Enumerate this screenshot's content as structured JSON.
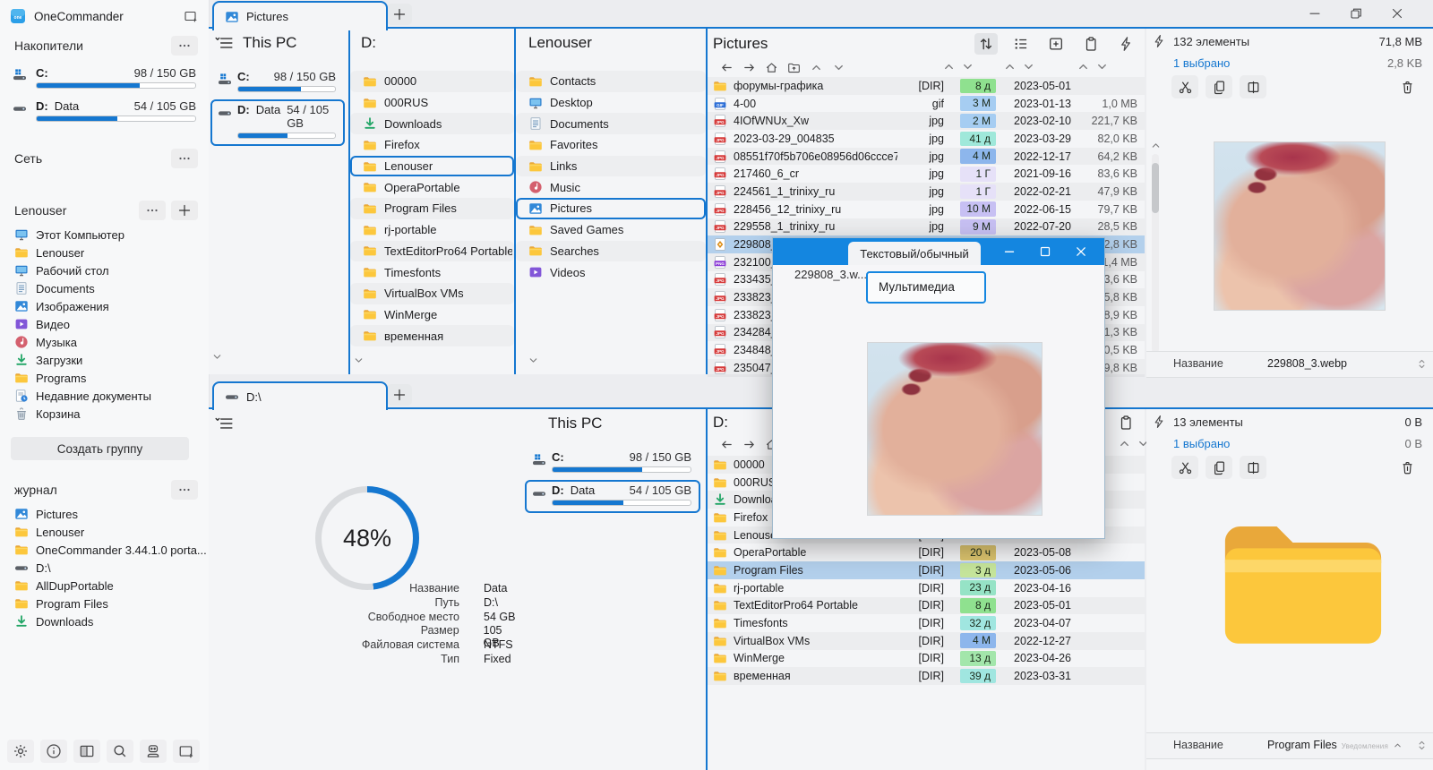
{
  "sidebar": {
    "app_title": "OneCommander",
    "drives_section": "Накопители",
    "network_section": "Сеть",
    "group_section": "Lenouser",
    "journal_section": "журнал",
    "create_group": "Создать группу",
    "group_items": [
      {
        "icon": "monitor",
        "label": "Этот Компьютер"
      },
      {
        "icon": "folder",
        "label": "Lenouser"
      },
      {
        "icon": "monitor",
        "label": "Рабочий стол"
      },
      {
        "icon": "doc",
        "label": "Documents"
      },
      {
        "icon": "image",
        "label": "Изображения"
      },
      {
        "icon": "video",
        "label": "Видео"
      },
      {
        "icon": "music",
        "label": "Музыка"
      },
      {
        "icon": "download",
        "label": "Загрузки"
      },
      {
        "icon": "folder",
        "label": "Programs"
      },
      {
        "icon": "recent",
        "label": "Недавние документы"
      },
      {
        "icon": "recycle",
        "label": "Корзина"
      }
    ],
    "journal_items": [
      {
        "icon": "image",
        "label": "Pictures"
      },
      {
        "icon": "folder",
        "label": "Lenouser"
      },
      {
        "icon": "folder",
        "label": "OneCommander 3.44.1.0 porta..."
      },
      {
        "icon": "drive",
        "label": "D:\\"
      },
      {
        "icon": "folder",
        "label": "AllDupPortable"
      },
      {
        "icon": "folder",
        "label": "Program Files"
      },
      {
        "icon": "download",
        "label": "Downloads"
      }
    ]
  },
  "drives": {
    "c": {
      "icon": "drivec",
      "letter": "C:",
      "name": "",
      "usage": "98 / 150 GB",
      "percent": 65
    },
    "d": {
      "icon": "drive",
      "letter": "D:",
      "name": "Data",
      "usage": "54 / 105 GB",
      "percent": 51
    }
  },
  "top_pane": {
    "tab_label": "Pictures",
    "thispc_title": "This PC",
    "d_column": {
      "title": "D:",
      "items": [
        {
          "icon": "folder",
          "label": "00000"
        },
        {
          "icon": "folder",
          "label": "000RUS"
        },
        {
          "icon": "download",
          "label": "Downloads"
        },
        {
          "icon": "folder",
          "label": "Firefox"
        },
        {
          "icon": "folder",
          "label": "Lenouser",
          "selected": true
        },
        {
          "icon": "folder",
          "label": "OperaPortable"
        },
        {
          "icon": "folder",
          "label": "Program Files"
        },
        {
          "icon": "folder",
          "label": "rj-portable"
        },
        {
          "icon": "folder",
          "label": "TextEditorPro64 Portable"
        },
        {
          "icon": "folder",
          "label": "Timesfonts"
        },
        {
          "icon": "folder",
          "label": "VirtualBox VMs"
        },
        {
          "icon": "folder",
          "label": "WinMerge"
        },
        {
          "icon": "folder",
          "label": "временная"
        }
      ]
    },
    "lenouser_column": {
      "title": "Lenouser",
      "items": [
        {
          "icon": "folder",
          "label": "Contacts"
        },
        {
          "icon": "monitor",
          "label": "Desktop"
        },
        {
          "icon": "doc",
          "label": "Documents"
        },
        {
          "icon": "folder",
          "label": "Favorites"
        },
        {
          "icon": "folder",
          "label": "Links"
        },
        {
          "icon": "music",
          "label": "Music"
        },
        {
          "icon": "image",
          "label": "Pictures",
          "selected": true
        },
        {
          "icon": "folder",
          "label": "Saved Games"
        },
        {
          "icon": "folder",
          "label": "Searches"
        },
        {
          "icon": "video",
          "label": "Videos"
        }
      ]
    },
    "files": {
      "title": "Pictures",
      "rows": [
        {
          "icon": "folder",
          "name": "форумы-графика",
          "type": "[DIR]",
          "age": "8 д",
          "age_color": "#8fe18f",
          "date": "2023-05-01",
          "size": ""
        },
        {
          "icon": "gif",
          "name": "4-00",
          "type": "gif",
          "age": "3 М",
          "age_color": "#a6cdf2",
          "date": "2023-01-13",
          "size": "1,0 MB"
        },
        {
          "icon": "jpg",
          "name": "4IOfWNUx_Xw",
          "type": "jpg",
          "age": "2 М",
          "age_color": "#a6cdf2",
          "date": "2023-02-10",
          "size": "221,7 KB"
        },
        {
          "icon": "jpg",
          "name": "2023-03-29_004835",
          "type": "jpg",
          "age": "41 д",
          "age_color": "#9fe8da",
          "date": "2023-03-29",
          "size": "82,0 KB"
        },
        {
          "icon": "jpg",
          "name": "08551f70f5b706e08956d06ccce74bb1",
          "type": "jpg",
          "age": "4 М",
          "age_color": "#8db6ec",
          "date": "2022-12-17",
          "size": "64,2 KB"
        },
        {
          "icon": "jpg",
          "name": "217460_6_cr",
          "type": "jpg",
          "age": "1 Г",
          "age_color": "#e6e1f8",
          "date": "2021-09-16",
          "size": "83,6 KB"
        },
        {
          "icon": "jpg",
          "name": "224561_1_trinixy_ru",
          "type": "jpg",
          "age": "1 Г",
          "age_color": "#e6e1f8",
          "date": "2022-02-21",
          "size": "47,9 KB"
        },
        {
          "icon": "jpg",
          "name": "228456_12_trinixy_ru",
          "type": "jpg",
          "age": "10 М",
          "age_color": "#c7c0f3",
          "date": "2022-06-15",
          "size": "79,7 KB"
        },
        {
          "icon": "jpg",
          "name": "229558_1_trinixy_ru",
          "type": "jpg",
          "age": "9 М",
          "age_color": "#c7c0f3",
          "date": "2022-07-20",
          "size": "28,5 KB"
        },
        {
          "icon": "webp",
          "name": "229808_3",
          "type": "",
          "age": "",
          "age_color": "",
          "date": "",
          "size": "2,8 KB",
          "selected": true
        },
        {
          "icon": "png",
          "name": "232100_1",
          "type": "",
          "age": "",
          "age_color": "",
          "date": "",
          "size": "1,4 MB"
        },
        {
          "icon": "jpg",
          "name": "233435_5",
          "type": "",
          "age": "",
          "age_color": "",
          "date": "",
          "size": "3,6 KB"
        },
        {
          "icon": "jpg",
          "name": "233823_7",
          "type": "",
          "age": "",
          "age_color": "",
          "date": "",
          "size": "5,8 KB"
        },
        {
          "icon": "jpg",
          "name": "233823_8",
          "type": "",
          "age": "",
          "age_color": "",
          "date": "",
          "size": "8,9 KB"
        },
        {
          "icon": "jpg",
          "name": "234284_1",
          "type": "",
          "age": "",
          "age_color": "",
          "date": "",
          "size": "1,3 KB"
        },
        {
          "icon": "jpg",
          "name": "234848_8",
          "type": "",
          "age": "",
          "age_color": "",
          "date": "",
          "size": "0,5 KB"
        },
        {
          "icon": "jpg",
          "name": "235047_9",
          "type": "",
          "age": "",
          "age_color": "",
          "date": "",
          "size": "9,8 KB"
        }
      ]
    }
  },
  "bottom_pane": {
    "tab_label": "D:\\",
    "thispc_title": "This PC",
    "donut": {
      "percent": 48,
      "label": "48%"
    },
    "drive_info": [
      {
        "label": "Название",
        "value": "Data"
      },
      {
        "label": "Путь",
        "value": "D:\\"
      },
      {
        "label": "Свободное место",
        "value": "54 GB"
      },
      {
        "label": "Размер",
        "value": "105 GB"
      },
      {
        "label": "Файловая система",
        "value": "NTFS"
      },
      {
        "label": "Тип",
        "value": "Fixed"
      }
    ],
    "files": {
      "title": "D:",
      "rows": [
        {
          "icon": "folder",
          "name": "00000",
          "type": "",
          "age": "",
          "age_color": "",
          "date": "",
          "size": ""
        },
        {
          "icon": "folder",
          "name": "000RUS",
          "type": "",
          "age": "",
          "age_color": "",
          "date": "",
          "size": ""
        },
        {
          "icon": "download",
          "name": "Downloads",
          "type": "",
          "age": "",
          "age_color": "",
          "date": "",
          "size": ""
        },
        {
          "icon": "folder",
          "name": "Firefox",
          "type": "",
          "age": "",
          "age_color": "",
          "date": "",
          "size": ""
        },
        {
          "icon": "folder",
          "name": "Lenouser",
          "type": "[DIR]",
          "age": "",
          "age_color": "",
          "date": "",
          "size": ""
        },
        {
          "icon": "folder",
          "name": "OperaPortable",
          "type": "[DIR]",
          "age": "20 ч",
          "age_color": "#dcc46e",
          "date": "2023-05-08",
          "size": ""
        },
        {
          "icon": "folder",
          "name": "Program Files",
          "type": "[DIR]",
          "age": "3 д",
          "age_color": "#c6e59b",
          "date": "2023-05-06",
          "size": "",
          "selected": true
        },
        {
          "icon": "folder",
          "name": "rj-portable",
          "type": "[DIR]",
          "age": "23 д",
          "age_color": "#96e3c6",
          "date": "2023-04-16",
          "size": ""
        },
        {
          "icon": "folder",
          "name": "TextEditorPro64 Portable",
          "type": "[DIR]",
          "age": "8 д",
          "age_color": "#8fe18f",
          "date": "2023-05-01",
          "size": ""
        },
        {
          "icon": "folder",
          "name": "Timesfonts",
          "type": "[DIR]",
          "age": "32 д",
          "age_color": "#a0e6e0",
          "date": "2023-04-07",
          "size": ""
        },
        {
          "icon": "folder",
          "name": "VirtualBox VMs",
          "type": "[DIR]",
          "age": "4 М",
          "age_color": "#8db6ec",
          "date": "2022-12-27",
          "size": ""
        },
        {
          "icon": "folder",
          "name": "WinMerge",
          "type": "[DIR]",
          "age": "13 д",
          "age_color": "#a3e6ab",
          "date": "2023-04-26",
          "size": ""
        },
        {
          "icon": "folder",
          "name": "временная",
          "type": "[DIR]",
          "age": "39 д",
          "age_color": "#a0e6e0",
          "date": "2023-03-31",
          "size": ""
        }
      ]
    }
  },
  "right_top": {
    "count": "132 элементы",
    "total_size": "71,8 MB",
    "selected": "1 выбрано",
    "selected_size": "2,8 KB",
    "name_label": "Название",
    "name_value": "229808_3.webp"
  },
  "right_bottom": {
    "count": "13 элементы",
    "total_size": "0 B",
    "selected": "1 выбрано",
    "selected_size": "0 B",
    "name_label": "Название",
    "name_value": "Program Files",
    "notice": "Уведомления"
  },
  "popup": {
    "title_tab": "Текстовый/обычный",
    "file_label": "229808_3.w...",
    "content_tab": "Мультимедиа"
  }
}
